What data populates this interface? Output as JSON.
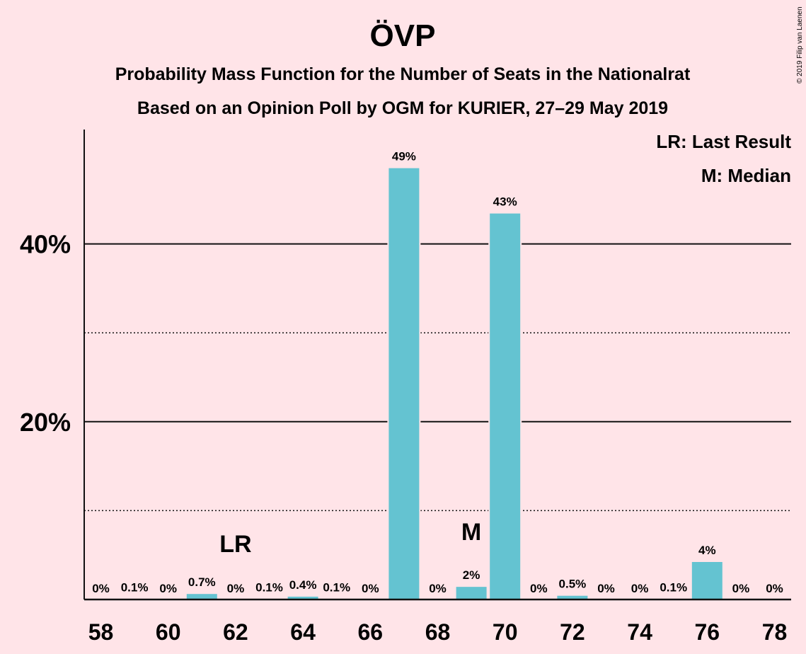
{
  "header": {
    "title": "ÖVP",
    "subtitle1": "Probability Mass Function for the Number of Seats in the Nationalrat",
    "subtitle2": "Based on an Opinion Poll by OGM for KURIER, 27–29 May 2019",
    "credit": "© 2019 Filip van Laenen"
  },
  "legend": {
    "lr": "LR: Last Result",
    "m": "M: Median",
    "placement": "top-right"
  },
  "colors": {
    "background": "#ffe4e8",
    "bar": "#64c3d1",
    "text": "#111111"
  },
  "chart_data": {
    "type": "bar",
    "x": [
      58,
      59,
      60,
      61,
      62,
      63,
      64,
      65,
      66,
      67,
      68,
      69,
      70,
      71,
      72,
      73,
      74,
      75,
      76,
      77,
      78
    ],
    "values": [
      0,
      0.1,
      0,
      0.7,
      0,
      0.1,
      0.4,
      0.1,
      0,
      48.6,
      0,
      1.5,
      43.5,
      0,
      0.5,
      0,
      0,
      0.1,
      4.3,
      0,
      0
    ],
    "labels": [
      "0%",
      "0.1%",
      "0%",
      "0.7%",
      "0%",
      "0.1%",
      "0.4%",
      "0.1%",
      "0%",
      "49%",
      "0%",
      "2%",
      "43%",
      "0%",
      "0.5%",
      "0%",
      "0%",
      "0.1%",
      "4%",
      "0%",
      "0%"
    ],
    "xticks": [
      58,
      60,
      62,
      64,
      66,
      68,
      70,
      72,
      74,
      76,
      78
    ],
    "yticks": [
      {
        "value": 20,
        "label": "20%"
      },
      {
        "value": 40,
        "label": "40%"
      }
    ],
    "minor_gridlines": [
      10,
      30
    ],
    "ylim": [
      0,
      53
    ],
    "last_result": {
      "x": 62,
      "label": "LR"
    },
    "median": {
      "x": 69,
      "label": "M"
    }
  }
}
